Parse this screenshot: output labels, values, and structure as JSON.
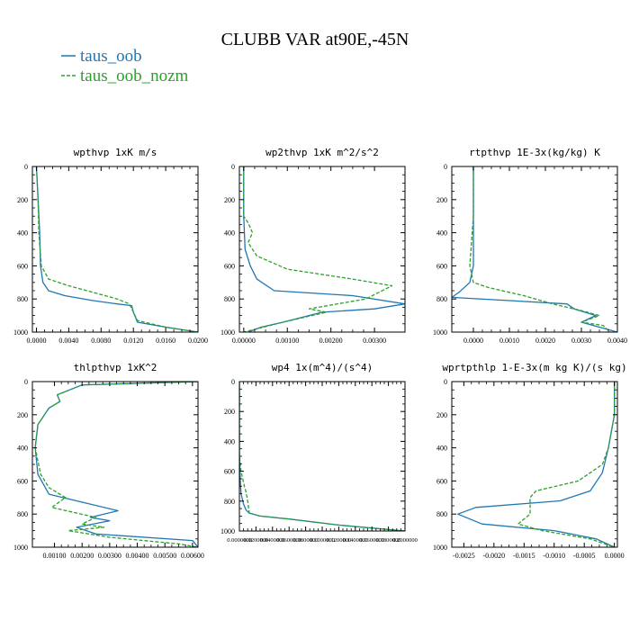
{
  "title": "CLUBB VAR at90E,-45N",
  "legend": {
    "placement": "top-left",
    "entries": [
      {
        "name": "taus_oob",
        "color": "#1f77b4",
        "style": "solid"
      },
      {
        "name": "taus_oob_nozm",
        "color": "#2ca02c",
        "style": "dashed"
      }
    ]
  },
  "chart_data": [
    {
      "type": "line",
      "title": "wpthvp  1xK m/s",
      "xlim": [
        -0.0005,
        0.02
      ],
      "ylim": [
        1000,
        0
      ],
      "xticks": [
        0.0,
        0.004,
        0.008,
        0.012,
        0.016,
        0.02
      ],
      "xtick_labels": [
        "0.0000",
        "0.0040",
        "0.0080",
        "0.0120",
        "0.0160",
        "0.0200"
      ],
      "yticks": [
        0,
        200,
        400,
        600,
        800,
        1000
      ],
      "ytick_labels": [
        "0",
        "200",
        "400",
        "600",
        "800",
        "1000"
      ],
      "series": [
        {
          "name": "taus_oob",
          "x": [
            0.0,
            0.0002,
            0.0004,
            0.0005,
            0.0008,
            0.0015,
            0.0035,
            0.007,
            0.01,
            0.0118,
            0.012,
            0.0125,
            0.016,
            0.02
          ],
          "y": [
            0,
            200,
            400,
            600,
            700,
            750,
            780,
            810,
            830,
            840,
            880,
            940,
            970,
            1000
          ]
        },
        {
          "name": "taus_oob_nozm",
          "x": [
            0.0,
            0.0002,
            0.0003,
            0.0006,
            0.0015,
            0.004,
            0.007,
            0.01,
            0.0115,
            0.012,
            0.0125,
            0.016,
            0.02
          ],
          "y": [
            0,
            200,
            400,
            600,
            680,
            720,
            760,
            800,
            830,
            880,
            930,
            970,
            1000
          ]
        }
      ]
    },
    {
      "type": "line",
      "title": "wp2thvp  1xK m^2/s^2",
      "xlim": [
        -0.0001,
        0.0037
      ],
      "ylim": [
        1000,
        0
      ],
      "xticks": [
        0.0,
        0.001,
        0.002,
        0.003
      ],
      "xtick_labels": [
        "0.00000",
        "0.00100",
        "0.00200",
        "0.00300"
      ],
      "yticks": [
        0,
        200,
        400,
        600,
        800,
        1000
      ],
      "ytick_labels": [
        "0",
        "200",
        "400",
        "600",
        "800",
        "1000"
      ],
      "series": [
        {
          "name": "taus_oob",
          "x": [
            0.0,
            0.0,
            3e-05,
            0.00015,
            0.0003,
            0.0007,
            0.0025,
            0.0037,
            0.003,
            0.0018,
            0.0009,
            0.0004,
            0.0001
          ],
          "y": [
            0,
            300,
            500,
            600,
            680,
            750,
            780,
            830,
            860,
            880,
            940,
            970,
            1000
          ]
        },
        {
          "name": "taus_oob_nozm",
          "x": [
            0.0,
            0.0,
            0.0001,
            0.0002,
            0.0001,
            0.0003,
            0.001,
            0.0025,
            0.0034,
            0.0028,
            0.0015,
            0.0019,
            0.0009,
            0.0003,
            0.0
          ],
          "y": [
            0,
            300,
            340,
            400,
            460,
            540,
            620,
            680,
            720,
            800,
            860,
            880,
            940,
            980,
            1000
          ]
        }
      ]
    },
    {
      "type": "line",
      "title": "rtpthvp  1E-3x(kg/kg) K",
      "xlim": [
        -0.0006,
        0.004
      ],
      "ylim": [
        1000,
        0
      ],
      "xticks": [
        0.0,
        0.001,
        0.002,
        0.003,
        0.004
      ],
      "xtick_labels": [
        "0.0000",
        "0.0010",
        "0.0020",
        "0.0030",
        "0.0040"
      ],
      "yticks": [
        0,
        200,
        400,
        600,
        800,
        1000
      ],
      "ytick_labels": [
        "0",
        "200",
        "400",
        "600",
        "800",
        "1000"
      ],
      "series": [
        {
          "name": "taus_oob",
          "x": [
            0.0,
            0.0,
            0.0,
            -0.0001,
            -0.0004,
            -0.0006,
            0.001,
            0.0026,
            0.0028,
            0.0034,
            0.003,
            0.0035,
            0.004
          ],
          "y": [
            0,
            300,
            600,
            700,
            760,
            790,
            810,
            830,
            860,
            900,
            940,
            970,
            1000
          ]
        },
        {
          "name": "taus_oob_nozm",
          "x": [
            0.0,
            0.0,
            -0.0001,
            0.0,
            0.0004,
            0.0014,
            0.0022,
            0.003,
            0.0035,
            0.003,
            0.0036,
            0.0038
          ],
          "y": [
            0,
            300,
            600,
            700,
            730,
            780,
            830,
            870,
            900,
            940,
            960,
            1000
          ]
        }
      ]
    },
    {
      "type": "line",
      "title": "thlpthvp  1xK^2",
      "xlim": [
        0.0002,
        0.0062
      ],
      "ylim": [
        1000,
        0
      ],
      "xticks": [
        0.001,
        0.002,
        0.003,
        0.004,
        0.005,
        0.006
      ],
      "xtick_labels": [
        "0.00100",
        "0.00200",
        "0.00300",
        "0.00400",
        "0.00500",
        "0.00600"
      ],
      "yticks": [
        0,
        200,
        400,
        600,
        800,
        1000
      ],
      "ytick_labels": [
        "0",
        "200",
        "400",
        "600",
        "800",
        "1000"
      ],
      "series": [
        {
          "name": "taus_oob",
          "x": [
            0.0062,
            0.002,
            0.0011,
            0.0012,
            0.0008,
            0.0004,
            0.0003,
            0.0004,
            0.0008,
            0.0018,
            0.0033,
            0.0023,
            0.003,
            0.0018,
            0.0025,
            0.006,
            0.0062
          ],
          "y": [
            0,
            20,
            80,
            120,
            160,
            260,
            400,
            560,
            680,
            720,
            780,
            820,
            840,
            880,
            920,
            960,
            1000
          ]
        },
        {
          "name": "taus_oob_nozm",
          "x": [
            0.0062,
            0.002,
            0.0011,
            0.0012,
            0.0008,
            0.0004,
            0.0003,
            0.0005,
            0.0008,
            0.0014,
            0.0009,
            0.0025,
            0.002,
            0.0028,
            0.0015,
            0.003,
            0.0055,
            0.0062
          ],
          "y": [
            0,
            20,
            80,
            120,
            160,
            260,
            400,
            560,
            640,
            700,
            760,
            820,
            860,
            880,
            900,
            940,
            980,
            1000
          ]
        }
      ]
    },
    {
      "type": "line",
      "title": "wp4  1x(m^4)/(s^4)",
      "xlim": [
        0.0,
        0.2
      ],
      "ylim": [
        1000,
        0
      ],
      "xticks": [
        0.0,
        0.02,
        0.04,
        0.06,
        0.08,
        0.1,
        0.12,
        0.14,
        0.16,
        0.18,
        0.2
      ],
      "xtick_labels": [
        "0.0000000",
        "0.0200000",
        "0.0400000",
        "0.0600000",
        "0.0800000",
        "0.1000000",
        "0.1200000",
        "0.1400000",
        "0.1600000",
        "0.1800000",
        "0.2000000"
      ],
      "yticks": [
        0,
        200,
        400,
        600,
        800,
        1000
      ],
      "ytick_labels": [
        "0",
        "200",
        "400",
        "600",
        "800",
        "1000"
      ],
      "series": [
        {
          "name": "taus_oob",
          "x": [
            0.0,
            0.0,
            0.001,
            0.002,
            0.005,
            0.008,
            0.012,
            0.025,
            0.06,
            0.12,
            0.2
          ],
          "y": [
            0,
            500,
            650,
            750,
            820,
            860,
            880,
            900,
            920,
            960,
            1000
          ]
        },
        {
          "name": "taus_oob_nozm",
          "x": [
            0.0,
            0.0,
            0.002,
            0.006,
            0.008,
            0.01,
            0.012,
            0.025,
            0.06,
            0.12,
            0.2
          ],
          "y": [
            0,
            500,
            600,
            700,
            740,
            800,
            880,
            900,
            920,
            960,
            1000
          ]
        }
      ]
    },
    {
      "type": "line",
      "title": "wprtpthlp  1-E-3x(m kg K)/(s kg)",
      "xlim": [
        -0.0027,
        5e-05
      ],
      "ylim": [
        1000,
        0
      ],
      "xticks": [
        -0.0025,
        -0.002,
        -0.0015,
        -0.001,
        -0.0005,
        0.0
      ],
      "xtick_labels": [
        "-0.0025",
        "-0.0020",
        "-0.0015",
        "-0.0010",
        "-0.0005",
        "0.0000"
      ],
      "yticks": [
        0,
        200,
        400,
        600,
        800,
        1000
      ],
      "ytick_labels": [
        "0",
        "200",
        "400",
        "600",
        "800",
        "1000"
      ],
      "series": [
        {
          "name": "taus_oob",
          "x": [
            0.0,
            0.0,
            -0.0001,
            -0.0002,
            -0.0004,
            -0.0009,
            -0.0023,
            -0.0026,
            -0.0022,
            -0.001,
            -0.0003,
            0.0
          ],
          "y": [
            0,
            200,
            400,
            550,
            660,
            720,
            760,
            800,
            860,
            900,
            950,
            1000
          ]
        },
        {
          "name": "taus_oob_nozm",
          "x": [
            0.0,
            0.0,
            -0.0001,
            -0.0002,
            -0.0006,
            -0.0013,
            -0.0014,
            -0.0014,
            -0.0016,
            -0.0012,
            -0.0004,
            0.0
          ],
          "y": [
            0,
            200,
            400,
            500,
            600,
            660,
            700,
            800,
            860,
            900,
            950,
            1000
          ]
        }
      ]
    }
  ]
}
